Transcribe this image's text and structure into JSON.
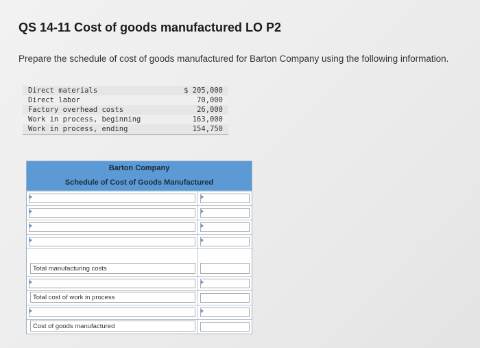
{
  "question": {
    "title": "QS 14-11 Cost of goods manufactured LO P2",
    "instructions": "Prepare the schedule of cost of goods manufactured for Barton Company using the following information."
  },
  "info_table": [
    {
      "label": "Direct materials",
      "value": "$ 205,000"
    },
    {
      "label": "Direct labor",
      "value": "70,000"
    },
    {
      "label": "Factory overhead costs",
      "value": "26,000"
    },
    {
      "label": "Work in process, beginning",
      "value": "163,000"
    },
    {
      "label": "Work in process, ending",
      "value": "154,750"
    }
  ],
  "schedule": {
    "company": "Barton Company",
    "subtitle": "Schedule of Cost of Goods Manufactured",
    "total_manufacturing_label": "Total manufacturing costs",
    "total_wip_label": "Total cost of work in process",
    "cogm_label": "Cost of goods manufactured"
  }
}
